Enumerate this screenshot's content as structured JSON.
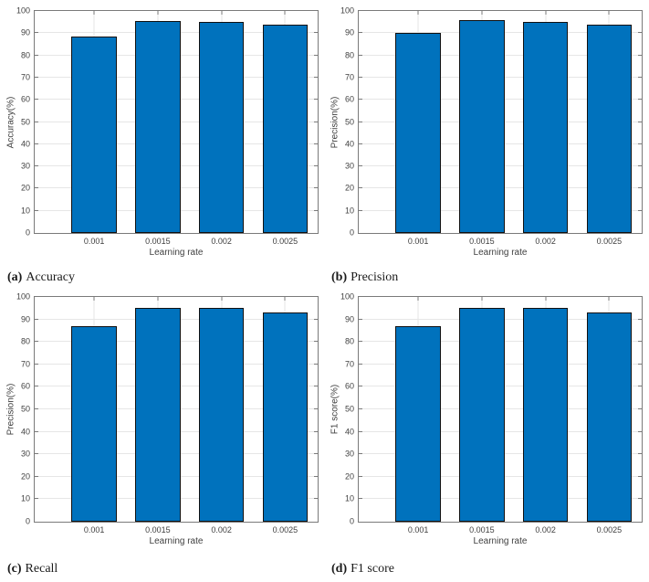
{
  "colors": {
    "bar_fill": "#0072BD",
    "bar_edge": "#101010",
    "grid": "#e6e6e6",
    "axis": "#7a7a7a",
    "tick_label": "#3f3f3f",
    "caption": "#1a1a1a"
  },
  "chart_data": [
    {
      "id": "accuracy",
      "type": "bar",
      "caption_marker": "(a)",
      "caption_text": "Accuracy",
      "xlabel": "Learning rate",
      "ylabel": "Accuracy(%)",
      "categories": [
        "0.001",
        "0.0015",
        "0.002",
        "0.0025"
      ],
      "values": [
        88.5,
        95.5,
        95,
        94
      ],
      "ylim": [
        0,
        100
      ],
      "ytick_step": 10,
      "grid": true,
      "legend": "none"
    },
    {
      "id": "precision",
      "type": "bar",
      "caption_marker": "(b)",
      "caption_text": "Precision",
      "xlabel": "Learning rate",
      "ylabel": "Precision(%)",
      "categories": [
        "0.001",
        "0.0015",
        "0.002",
        "0.0025"
      ],
      "values": [
        90,
        96,
        95,
        94
      ],
      "ylim": [
        0,
        100
      ],
      "ytick_step": 10,
      "grid": true,
      "legend": "none"
    },
    {
      "id": "recall",
      "type": "bar",
      "caption_marker": "(c)",
      "caption_text": "Recall",
      "xlabel": "Learning rate",
      "ylabel": "Precision(%)",
      "categories": [
        "0.001",
        "0.0015",
        "0.002",
        "0.0025"
      ],
      "values": [
        87,
        95,
        95,
        93
      ],
      "ylim": [
        0,
        100
      ],
      "ytick_step": 10,
      "grid": true,
      "legend": "none"
    },
    {
      "id": "f1-score",
      "type": "bar",
      "caption_marker": "(d)",
      "caption_text": "F1 score",
      "xlabel": "Learning rate",
      "ylabel": "F1 score(%)",
      "categories": [
        "0.001",
        "0.0015",
        "0.002",
        "0.0025"
      ],
      "values": [
        87,
        95,
        95,
        93
      ],
      "ylim": [
        0,
        100
      ],
      "ytick_step": 10,
      "grid": true,
      "legend": "none"
    }
  ]
}
